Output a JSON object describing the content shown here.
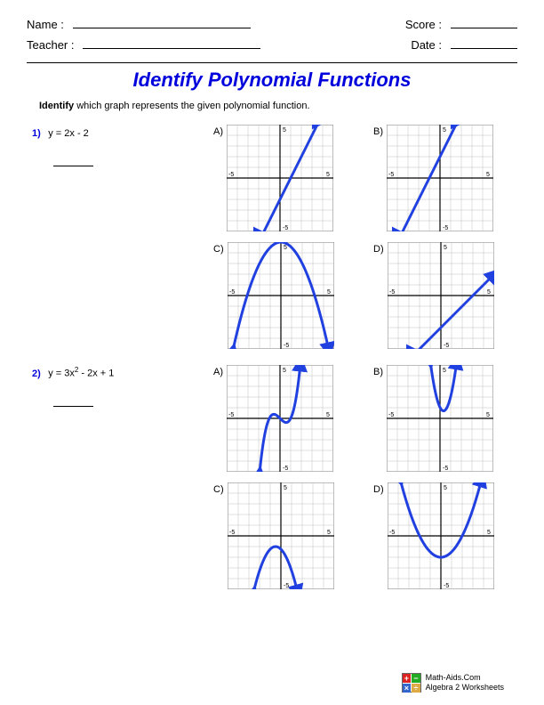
{
  "header": {
    "name_label": "Name :",
    "teacher_label": "Teacher :",
    "score_label": "Score :",
    "date_label": "Date :"
  },
  "title": "Identify Polynomial Functions",
  "instructions": "Identify which graph represents the given polynomial function.",
  "problems": [
    {
      "number": "1)",
      "equation_html": "y = 2x - 2",
      "graphs": [
        {
          "label": "A)",
          "curve_type": "line",
          "m": 2,
          "b": -2
        },
        {
          "label": "B)",
          "curve_type": "line",
          "m": 2,
          "b": 2
        },
        {
          "label": "C)",
          "curve_type": "parabola",
          "a": -0.5,
          "h": 0,
          "k": 5
        },
        {
          "label": "D)",
          "curve_type": "line",
          "m": 1,
          "b": -3
        }
      ]
    },
    {
      "number": "2)",
      "equation_html": "y = 3x² - 2x + 1",
      "graphs": [
        {
          "label": "A)",
          "curve_type": "cubic",
          "a": 1,
          "b": 0,
          "c": -1,
          "d": 0
        },
        {
          "label": "B)",
          "curve_type": "parabola",
          "a": 3,
          "h": 0.33,
          "k": 0.7
        },
        {
          "label": "C)",
          "curve_type": "parabola",
          "a": -1,
          "h": -0.5,
          "k": -1
        },
        {
          "label": "D)",
          "curve_type": "parabola",
          "a": 0.5,
          "h": 0,
          "k": -2
        }
      ]
    }
  ],
  "graph_style": {
    "size": 120,
    "domain": [
      -5,
      5
    ],
    "range": [
      -5,
      5
    ],
    "grid_color": "#c0c0c0",
    "axis_color": "#000000",
    "curve_color": "#2040e0",
    "curve_width": 3,
    "background": "#ffffff",
    "tick_fontsize": 7,
    "ticks": [
      -5,
      5
    ]
  },
  "footer": {
    "site": "Math-Aids.Com",
    "subtitle": "Algebra 2 Worksheets"
  }
}
